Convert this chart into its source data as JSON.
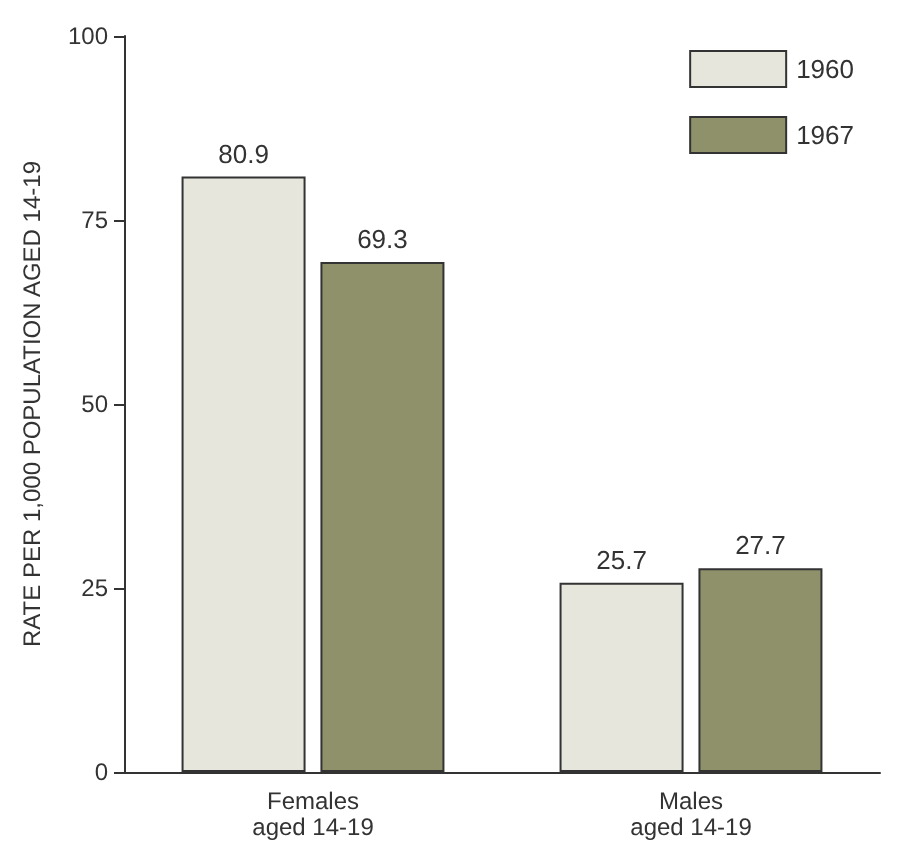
{
  "chart_data": {
    "type": "bar",
    "ylabel": "RATE PER 1,000 POPULATION AGED 14-19",
    "categories": [
      "Females\naged 14-19",
      "Males\naged 14-19"
    ],
    "series": [
      {
        "name": "1960",
        "color": "#e6e6dc",
        "values": [
          80.9,
          25.7
        ]
      },
      {
        "name": "1967",
        "color": "#8f916a",
        "values": [
          69.3,
          27.7
        ]
      }
    ],
    "ylim": [
      0,
      100
    ],
    "yticks": [
      0,
      25,
      50,
      75,
      100
    ],
    "data_labels": true,
    "legend": "top right",
    "grid": false
  }
}
